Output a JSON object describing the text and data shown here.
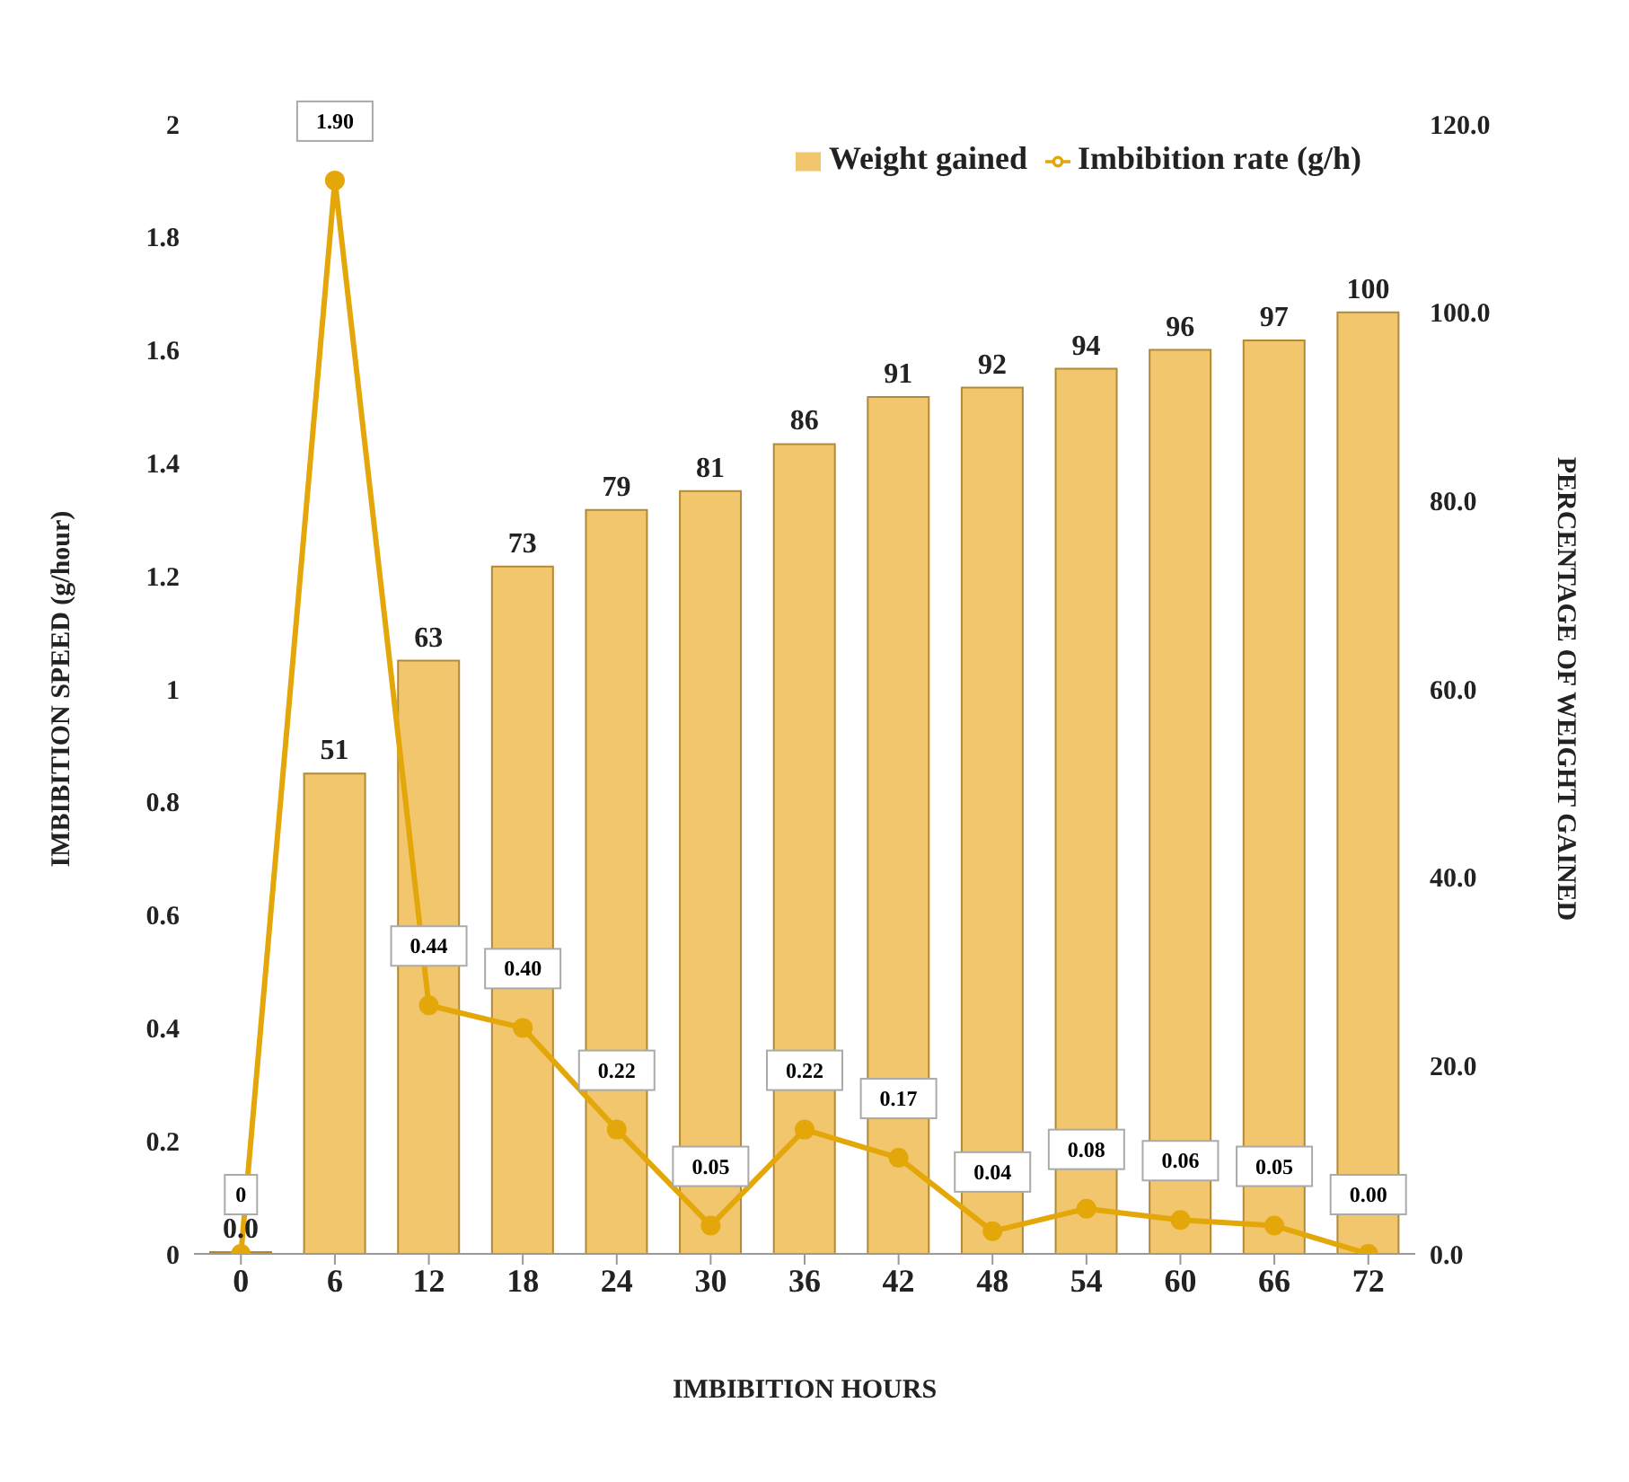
{
  "chart_data": {
    "type": "bar",
    "xlabel": "IMBIBITION HOURS",
    "ylabel": "IMBIBITION SPEED (g/hour)",
    "y2label": "PERCENTAGE OF WEIGHT GAINED",
    "categories": [
      "0",
      "6",
      "12",
      "18",
      "24",
      "30",
      "36",
      "42",
      "48",
      "54",
      "60",
      "66",
      "72"
    ],
    "series": [
      {
        "name": "Weight gained",
        "axis": "y2",
        "color": "#f2c66d",
        "values": [
          0,
          51,
          63,
          73,
          79,
          81,
          86,
          91,
          92,
          94,
          96,
          97,
          100
        ],
        "value_labels": [
          "0.0",
          "51",
          "63",
          "73",
          "79",
          "81",
          "86",
          "91",
          "92",
          "94",
          "96",
          "97",
          "100"
        ]
      },
      {
        "name": "Imbibition rate (g/h)",
        "type": "line",
        "axis": "y",
        "color": "#e3a70a",
        "values": [
          0,
          1.9,
          0.44,
          0.4,
          0.22,
          0.05,
          0.22,
          0.17,
          0.04,
          0.08,
          0.06,
          0.05,
          0.0
        ],
        "value_labels": [
          "0",
          "1.90",
          "0.44",
          "0.40",
          "0.22",
          "0.05",
          "0.22",
          "0.17",
          "0.04",
          "0.08",
          "0.06",
          "0.05",
          "0.00"
        ]
      }
    ],
    "ylim": [
      0,
      2
    ],
    "yticks": [
      0,
      0.2,
      0.4,
      0.6,
      0.8,
      1,
      1.2,
      1.4,
      1.6,
      1.8,
      2
    ],
    "y2lim": [
      0,
      120
    ],
    "y2ticks": [
      {
        "value": 0,
        "label": "0.0"
      },
      {
        "value": 20,
        "label": "20.0"
      },
      {
        "value": 40,
        "label": "40.0"
      },
      {
        "value": 60,
        "label": "60.0"
      },
      {
        "value": 80,
        "label": "80.0"
      },
      {
        "value": 100,
        "label": "100.0"
      },
      {
        "value": 120,
        "label": "120.0"
      }
    ],
    "grid": false,
    "legend": "top right",
    "marker": "circle",
    "line_style": "solid"
  }
}
